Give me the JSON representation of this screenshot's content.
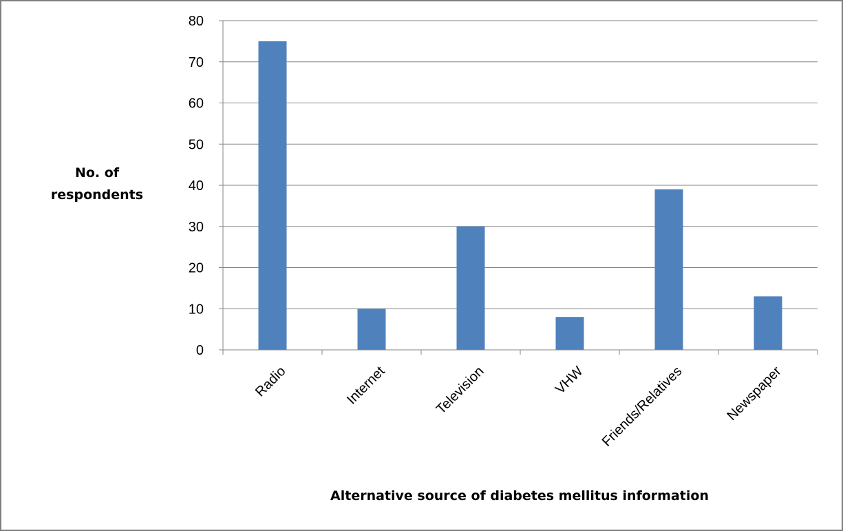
{
  "chart_data": {
    "type": "bar",
    "categories": [
      "Radio",
      "Internet",
      "Television",
      "VHW",
      "Friends/Relatives",
      "Newspaper"
    ],
    "values": [
      75,
      10,
      30,
      8,
      39,
      13
    ],
    "ylabel_lines": [
      "No. of",
      "respondents"
    ],
    "xlabel": "Alternative source of diabetes mellitus information",
    "ylim": [
      0,
      80
    ],
    "yticks": [
      0,
      10,
      20,
      30,
      40,
      50,
      60,
      70,
      80
    ],
    "grid": true,
    "legend": "none",
    "bar_color": "#4f81bd",
    "grid_color": "#868686"
  }
}
